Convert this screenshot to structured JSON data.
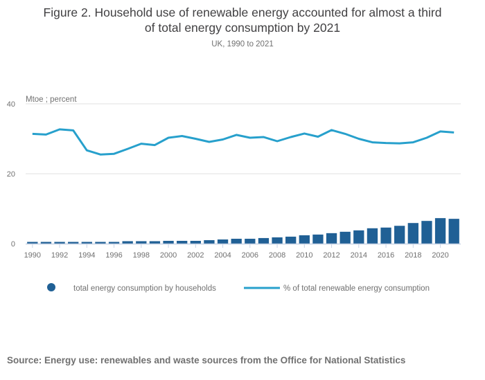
{
  "header": {
    "title_line1": "Figure 2. Household use of renewable energy accounted for almost a third",
    "title_line2": "of total energy consumption by 2021",
    "subtitle": "UK, 1990 to 2021"
  },
  "source": "Source: Energy use: renewables and waste sources from the Office for National Statistics",
  "colors": {
    "bars": "#206095",
    "line": "#27a0cc",
    "grid": "#e0e0e0",
    "text": "#707070"
  },
  "chart_data": {
    "type": "bar",
    "title": "Figure 2. Household use of renewable energy accounted for almost a third of total energy consumption by 2021",
    "subtitle": "UK, 1990 to 2021",
    "ylabel": "Mtoe ; percent",
    "xlabel": "",
    "ylim": [
      0,
      40
    ],
    "yticks": [
      0,
      20,
      40
    ],
    "grid": true,
    "legend_position": "bottom",
    "categories": [
      1990,
      1991,
      1992,
      1993,
      1994,
      1995,
      1996,
      1997,
      1998,
      1999,
      2000,
      2001,
      2002,
      2003,
      2004,
      2005,
      2006,
      2007,
      2008,
      2009,
      2010,
      2011,
      2012,
      2013,
      2014,
      2015,
      2016,
      2017,
      2018,
      2019,
      2020,
      2021
    ],
    "xtick_labels": [
      "1990",
      "1992",
      "1994",
      "1996",
      "1998",
      "2000",
      "2002",
      "2004",
      "2006",
      "2008",
      "2010",
      "2012",
      "2014",
      "2016",
      "2018",
      "2020"
    ],
    "series": [
      {
        "name": "total energy consumption by households",
        "type": "bar",
        "values": [
          0.5,
          0.5,
          0.5,
          0.5,
          0.5,
          0.5,
          0.5,
          0.7,
          0.7,
          0.7,
          0.8,
          0.8,
          0.8,
          1.0,
          1.2,
          1.4,
          1.4,
          1.6,
          1.8,
          2.0,
          2.4,
          2.6,
          3.0,
          3.4,
          3.8,
          4.4,
          4.6,
          5.1,
          5.9,
          6.5,
          7.3,
          7.1
        ]
      },
      {
        "name": "% of total renewable energy consumption",
        "type": "line",
        "values": [
          31.4,
          31.2,
          32.7,
          32.4,
          26.7,
          25.5,
          25.7,
          27.1,
          28.6,
          28.2,
          30.3,
          30.8,
          30.0,
          29.1,
          29.8,
          31.1,
          30.3,
          30.5,
          29.3,
          30.5,
          31.5,
          30.6,
          32.5,
          31.4,
          30.0,
          29.0,
          28.8,
          28.7,
          29.0,
          30.3,
          32.1,
          31.8
        ]
      }
    ]
  }
}
